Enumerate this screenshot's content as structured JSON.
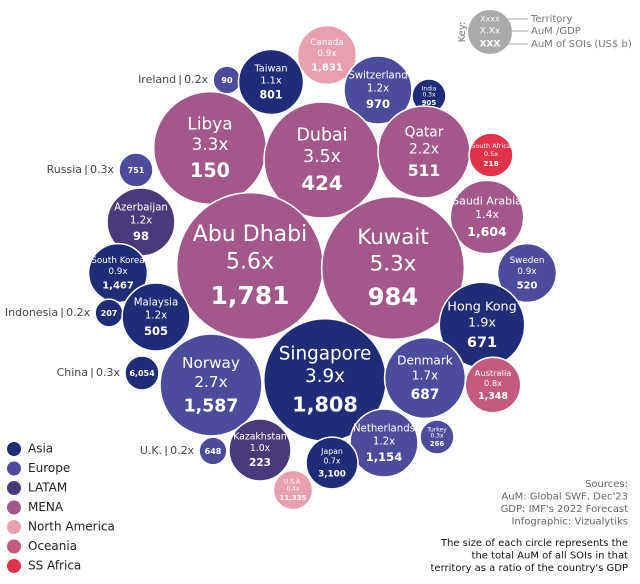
{
  "chart_data": {
    "type": "packed-bubble",
    "key": {
      "title": "Key:",
      "sample": [
        "Xxxx",
        "X.Xx",
        "XXX"
      ],
      "labels": [
        "Territory",
        "AuM /GDP",
        "AuM of SOIs (US$ b)"
      ]
    },
    "series": [
      {
        "name": "Asia",
        "color": "#1f2d78"
      },
      {
        "name": "Europe",
        "color": "#4b4c9c"
      },
      {
        "name": "LATAM",
        "color": "#4a3a7c"
      },
      {
        "name": "MENA",
        "color": "#a3588c"
      },
      {
        "name": "North America",
        "color": "#e8a0b0"
      },
      {
        "name": "Oceania",
        "color": "#c45a7c"
      },
      {
        "name": "SS Africa",
        "color": "#e0334a"
      }
    ],
    "territories": [
      "Canada",
      "Ireland",
      "Taiwan",
      "Switzerland",
      "India",
      "Libya",
      "Dubai",
      "Qatar",
      "South Africa",
      "Russia",
      "Saudi Arabia",
      "Azerbaijan",
      "Abu Dhabi",
      "Kuwait",
      "South Korea",
      "Sweden",
      "Indonesia",
      "Malaysia",
      "Hong Kong",
      "Singapore",
      "China",
      "Norway",
      "Denmark",
      "Australia",
      "Netherlands",
      "Turkey",
      "Kazakhstan",
      "U.K.",
      "Japan",
      "U.S.A."
    ],
    "regions": [
      "North America",
      "Europe",
      "Asia",
      "Europe",
      "Asia",
      "MENA",
      "MENA",
      "MENA",
      "SS Africa",
      "Europe",
      "MENA",
      "LATAM",
      "MENA",
      "MENA",
      "Asia",
      "Europe",
      "Asia",
      "Asia",
      "Asia",
      "Asia",
      "Asia",
      "Europe",
      "Europe",
      "Oceania",
      "Europe",
      "Europe",
      "LATAM",
      "Europe",
      "Asia",
      "North America"
    ],
    "ratios": [
      0.9,
      0.2,
      1.1,
      1.2,
      0.3,
      3.3,
      3.5,
      2.2,
      0.5,
      0.3,
      1.4,
      1.2,
      5.6,
      5.3,
      0.9,
      0.9,
      0.2,
      1.2,
      1.9,
      3.9,
      0.3,
      2.7,
      1.7,
      0.8,
      1.2,
      0.3,
      1.0,
      0.2,
      0.7,
      0.4
    ],
    "ratio_labels": [
      "0.9x",
      "0.2x",
      "1.1x",
      "1.2x",
      "0.3x",
      "3.3x",
      "3.5x",
      "2.2x",
      "0.5x",
      "0.3x",
      "1.4x",
      "1.2x",
      "5.6x",
      "5.3x",
      "0.9x",
      "0.9x",
      "0.2x",
      "1.2x",
      "1.9x",
      "3.9x",
      "0.3x",
      "2.7x",
      "1.7x",
      "0.8x",
      "1.2x",
      "0.3x",
      "1.0x",
      "0.2x",
      "0.7x",
      "0.4x"
    ],
    "aum": [
      1831,
      90,
      801,
      970,
      905,
      150,
      424,
      511,
      218,
      751,
      1604,
      98,
      1781,
      984,
      1467,
      520,
      207,
      505,
      671,
      1808,
      6054,
      1587,
      687,
      1348,
      1154,
      266,
      223,
      648,
      3100,
      11335
    ],
    "aum_labels": [
      "1,831",
      "90",
      "801",
      "970",
      "905",
      "150",
      "424",
      "511",
      "218",
      "751",
      "1,604",
      "98",
      "1,781",
      "984",
      "1,467",
      "520",
      "207",
      "505",
      "671",
      "1,808",
      "6,054",
      "1,587",
      "687",
      "1,348",
      "1,154",
      "266",
      "223",
      "648",
      "3,100",
      "11,335"
    ],
    "sources": [
      "Sources:",
      "AuM: Global SWF, Dec'23",
      "GDP: IMF's 2022 Forecast",
      "Infographic: Vizualytiks"
    ],
    "note": [
      "The size of each circle represents the",
      "the total AuM of all SOIs in that",
      "territory as a ratio of the country's GDP"
    ]
  }
}
